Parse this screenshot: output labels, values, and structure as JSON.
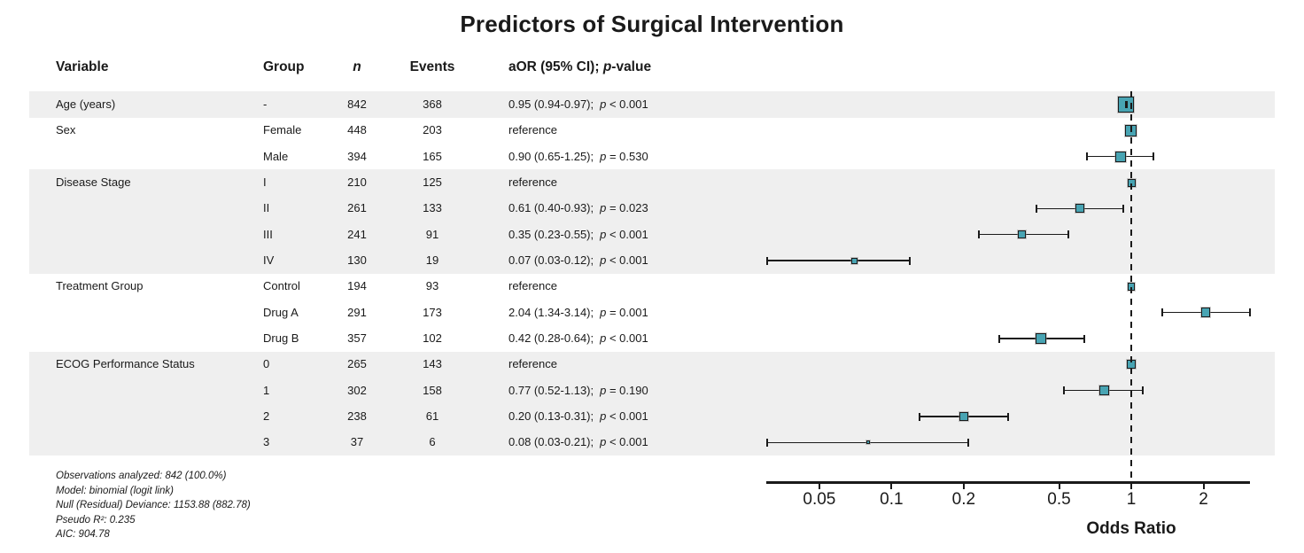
{
  "chart_data": {
    "type": "forest",
    "title": "Predictors of Surgical Intervention",
    "columns": {
      "variable": "Variable",
      "group": "Group",
      "n": "n",
      "events": "Events",
      "aor_pre": "aOR (95% CI); ",
      "aor_p_italic": "p",
      "aor_post": "-value"
    },
    "xlabel": "Odds Ratio",
    "xscale": "log10",
    "xticks": [
      0.05,
      0.1,
      0.2,
      0.5,
      1,
      2
    ],
    "xtick_labels": [
      "0.05",
      "0.1",
      "0.2",
      "0.5",
      "1",
      "2"
    ],
    "xlim": [
      0.028,
      3.3
    ],
    "ref_line": 1,
    "rows": [
      {
        "variable": "Age (years)",
        "group": "-",
        "n": 842,
        "events": 368,
        "ci_text": "0.95 (0.94-0.97)",
        "p_text": "p < 0.001",
        "est": 0.95,
        "lo": 0.94,
        "hi": 0.97
      },
      {
        "variable": "Sex",
        "group": "Female",
        "n": 448,
        "events": 203,
        "ci_text": "reference",
        "p_text": "",
        "est": 1,
        "lo": null,
        "hi": null
      },
      {
        "variable": "",
        "group": "Male",
        "n": 394,
        "events": 165,
        "ci_text": "0.90 (0.65-1.25)",
        "p_text": "p = 0.530",
        "est": 0.9,
        "lo": 0.65,
        "hi": 1.25
      },
      {
        "variable": "Disease Stage",
        "group": "I",
        "n": 210,
        "events": 125,
        "ci_text": "reference",
        "p_text": "",
        "est": 1,
        "lo": null,
        "hi": null
      },
      {
        "variable": "",
        "group": "II",
        "n": 261,
        "events": 133,
        "ci_text": "0.61 (0.40-0.93)",
        "p_text": "p = 0.023",
        "est": 0.61,
        "lo": 0.4,
        "hi": 0.93
      },
      {
        "variable": "",
        "group": "III",
        "n": 241,
        "events": 91,
        "ci_text": "0.35 (0.23-0.55)",
        "p_text": "p < 0.001",
        "est": 0.35,
        "lo": 0.23,
        "hi": 0.55
      },
      {
        "variable": "",
        "group": "IV",
        "n": 130,
        "events": 19,
        "ci_text": "0.07 (0.03-0.12)",
        "p_text": "p < 0.001",
        "est": 0.07,
        "lo": 0.03,
        "hi": 0.12
      },
      {
        "variable": "Treatment Group",
        "group": "Control",
        "n": 194,
        "events": 93,
        "ci_text": "reference",
        "p_text": "",
        "est": 1,
        "lo": null,
        "hi": null
      },
      {
        "variable": "",
        "group": "Drug A",
        "n": 291,
        "events": 173,
        "ci_text": "2.04 (1.34-3.14)",
        "p_text": "p = 0.001",
        "est": 2.04,
        "lo": 1.34,
        "hi": 3.14
      },
      {
        "variable": "",
        "group": "Drug B",
        "n": 357,
        "events": 102,
        "ci_text": "0.42 (0.28-0.64)",
        "p_text": "p < 0.001",
        "est": 0.42,
        "lo": 0.28,
        "hi": 0.64
      },
      {
        "variable": "ECOG Performance Status",
        "group": "0",
        "n": 265,
        "events": 143,
        "ci_text": "reference",
        "p_text": "",
        "est": 1,
        "lo": null,
        "hi": null
      },
      {
        "variable": "",
        "group": "1",
        "n": 302,
        "events": 158,
        "ci_text": "0.77 (0.52-1.13)",
        "p_text": "p = 0.190",
        "est": 0.77,
        "lo": 0.52,
        "hi": 1.13
      },
      {
        "variable": "",
        "group": "2",
        "n": 238,
        "events": 61,
        "ci_text": "0.20 (0.13-0.31)",
        "p_text": "p < 0.001",
        "est": 0.2,
        "lo": 0.13,
        "hi": 0.31
      },
      {
        "variable": "",
        "group": "3",
        "n": 37,
        "events": 6,
        "ci_text": "0.08 (0.03-0.21)",
        "p_text": "p < 0.001",
        "est": 0.08,
        "lo": 0.03,
        "hi": 0.21
      }
    ],
    "shaded_groups": [
      {
        "first_row": 0,
        "n_rows": 1
      },
      {
        "first_row": 3,
        "n_rows": 4
      },
      {
        "first_row": 10,
        "n_rows": 4
      }
    ],
    "footnotes": [
      "Observations analyzed: 842 (100.0%)",
      "Model: binomial (logit link)",
      "Null (Residual) Deviance: 1153.88 (882.78)",
      "Pseudo R²: 0.235",
      "AIC: 904.78"
    ],
    "colors": {
      "marker_fill": "#48a4b3",
      "marker_border": "#1b1b1b",
      "band": "#efefef",
      "line": "#1a1a1a"
    },
    "legend": "none",
    "grid": "off"
  }
}
